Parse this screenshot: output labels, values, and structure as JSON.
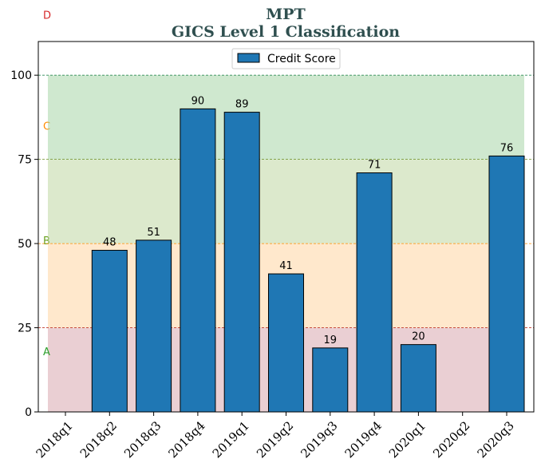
{
  "chart_data": {
    "type": "bar",
    "title": "MPT",
    "subtitle": "GICS Level 1 Classification",
    "categories": [
      "2018q1",
      "2018q2",
      "2018q3",
      "2018q4",
      "2019q1",
      "2019q2",
      "2019q3",
      "2019q4",
      "2020q1",
      "2020q2",
      "2020q3"
    ],
    "series": [
      {
        "name": "Credit Score",
        "values": [
          null,
          48,
          51,
          90,
          89,
          41,
          19,
          71,
          20,
          null,
          76
        ],
        "color": "#1f77b4"
      }
    ],
    "data_labels": [
      "",
      "48",
      "51",
      "90",
      "89",
      "41",
      "19",
      "71",
      "20",
      "",
      "76"
    ],
    "ylim": [
      0,
      110
    ],
    "yticks": [
      0,
      25,
      50,
      75,
      100
    ],
    "ytick_labels": [
      "0",
      "25",
      "50",
      "75",
      "100"
    ],
    "xlabel": "",
    "ylabel": "",
    "legend": {
      "position": "top-center",
      "entries": [
        "Credit Score"
      ]
    },
    "bands": [
      {
        "label": "A",
        "from": 0,
        "to": 25,
        "fill": "#d6a0a7",
        "line": "#c0392b",
        "label_color": "#2ca02c",
        "label_at": 18
      },
      {
        "label": "B",
        "from": 25,
        "to": 50,
        "fill": "#ffd29a",
        "line": "#ff8c00",
        "label_color": "#6aa121",
        "label_at": 51
      },
      {
        "label": "C",
        "from": 50,
        "to": 75,
        "fill": "#b9d39a",
        "line": "#6b8e23",
        "label_color": "#ff8c00",
        "label_at": 85
      },
      {
        "label": "D",
        "from": 75,
        "to": 100,
        "fill": "#9fd29f",
        "line": "#2e8b57",
        "label_color": "#d62728",
        "label_at": 118
      }
    ]
  }
}
